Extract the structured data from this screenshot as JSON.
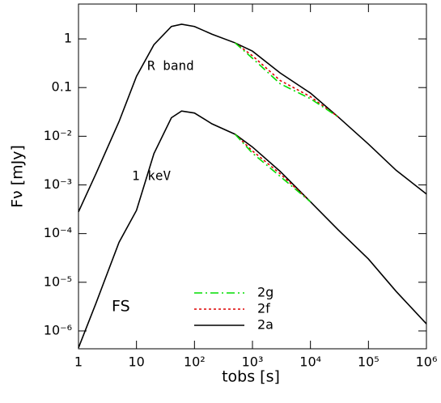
{
  "chart_data": {
    "type": "line",
    "x_label": "tobs [s]",
    "y_label": "Fν [mJy]",
    "log_x": true,
    "log_y": true,
    "xlim": [
      1,
      1000000
    ],
    "ylim": [
      4.3e-07,
      5.2
    ],
    "xticks": [
      1,
      10,
      {
        "value": 100,
        "label": "10²"
      },
      {
        "value": 1000,
        "label": "10³"
      },
      {
        "value": 10000,
        "label": "10⁴"
      },
      {
        "value": 100000,
        "label": "10⁵"
      },
      {
        "value": 1000000,
        "label": "10⁶"
      }
    ],
    "yticks": [
      {
        "value": 1e-06,
        "label": "10⁻⁶"
      },
      {
        "value": 1e-05,
        "label": "10⁻⁵"
      },
      {
        "value": 0.0001,
        "label": "10⁻⁴"
      },
      {
        "value": 0.001,
        "label": "10⁻³"
      },
      {
        "value": 0.01,
        "label": "10⁻²"
      },
      0.1,
      1
    ],
    "annotations": [
      "R band",
      "1 keV",
      "FS"
    ],
    "x": [
      1,
      2,
      5,
      10,
      20,
      40,
      60,
      100,
      200,
      500,
      1000,
      3000,
      10000,
      30000,
      100000,
      300000,
      1000000
    ],
    "series": [
      {
        "name": "2g",
        "color": "#00dd00",
        "dash": "10 4 2 4",
        "r_band": [
          null,
          null,
          null,
          null,
          null,
          null,
          null,
          null,
          null,
          0.83,
          0.4,
          0.12,
          0.059,
          0.025,
          null,
          null,
          null
        ],
        "x_ray": [
          null,
          null,
          null,
          null,
          null,
          null,
          null,
          null,
          null,
          0.011,
          0.0045,
          0.0015,
          0.00045,
          null,
          null,
          null,
          null
        ]
      },
      {
        "name": "2f",
        "color": "#dd0000",
        "dash": "3 3",
        "r_band": [
          null,
          null,
          null,
          null,
          null,
          null,
          null,
          null,
          null,
          0.83,
          0.45,
          0.14,
          0.065,
          0.025,
          null,
          null,
          null
        ],
        "x_ray": [
          null,
          null,
          null,
          null,
          null,
          null,
          null,
          null,
          null,
          0.011,
          0.005,
          0.0017,
          0.00045,
          null,
          null,
          null,
          null
        ]
      },
      {
        "name": "2a",
        "color": "#000000",
        "dash": "none",
        "r_band": [
          0.00028,
          0.0017,
          0.02,
          0.17,
          0.76,
          1.8,
          2.0,
          1.8,
          1.25,
          0.83,
          0.56,
          0.2,
          0.077,
          0.025,
          0.0069,
          0.002,
          0.00065
        ],
        "x_ray": [
          4.5e-07,
          3.7e-06,
          6.6e-05,
          0.0003,
          0.0044,
          0.024,
          0.033,
          0.03,
          0.018,
          0.011,
          0.006,
          0.0019,
          0.00045,
          0.00012,
          3e-05,
          6.5e-06,
          1.4e-06
        ]
      }
    ]
  }
}
